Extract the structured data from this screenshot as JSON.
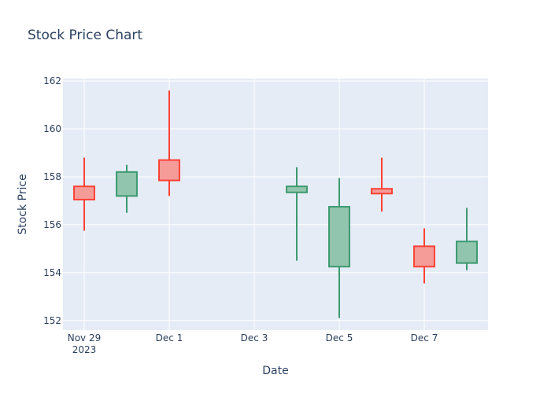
{
  "chart_data": {
    "type": "candlestick",
    "title": "Stock Price Chart",
    "xlabel": "Date",
    "ylabel": "Stock Price",
    "ylim": [
      151.6,
      162.1
    ],
    "xlim": [
      "2023-11-28T12:00",
      "2023-12-08T12:00"
    ],
    "yticks": [
      152,
      154,
      156,
      158,
      160,
      162
    ],
    "xticks": [
      {
        "date": "2023-11-29",
        "label": "Nov 29",
        "sublabel": "2023"
      },
      {
        "date": "2023-12-01",
        "label": "Dec 1",
        "sublabel": ""
      },
      {
        "date": "2023-12-03",
        "label": "Dec 3",
        "sublabel": ""
      },
      {
        "date": "2023-12-05",
        "label": "Dec 5",
        "sublabel": ""
      },
      {
        "date": "2023-12-07",
        "label": "Dec 7",
        "sublabel": ""
      }
    ],
    "grid": true,
    "colors": {
      "increasing_line": "#3d9970",
      "increasing_fill": "#92c5ad",
      "decreasing_line": "#ff4136",
      "decreasing_fill": "#f59c99",
      "plot_bg": "#e5ecf6",
      "grid": "#ffffff",
      "text": "#2a3f5f"
    },
    "candles": [
      {
        "date": "2023-11-29",
        "open": 157.6,
        "high": 158.8,
        "low": 155.75,
        "close": 157.05
      },
      {
        "date": "2023-11-30",
        "open": 157.2,
        "high": 158.5,
        "low": 156.5,
        "close": 158.2
      },
      {
        "date": "2023-12-01",
        "open": 158.7,
        "high": 161.6,
        "low": 157.2,
        "close": 157.85
      },
      {
        "date": "2023-12-04",
        "open": 157.35,
        "high": 158.4,
        "low": 154.5,
        "close": 157.6
      },
      {
        "date": "2023-12-05",
        "open": 154.25,
        "high": 157.95,
        "low": 152.1,
        "close": 156.75
      },
      {
        "date": "2023-12-06",
        "open": 157.5,
        "high": 158.8,
        "low": 156.55,
        "close": 157.3
      },
      {
        "date": "2023-12-07",
        "open": 155.1,
        "high": 155.85,
        "low": 153.55,
        "close": 154.25
      },
      {
        "date": "2023-12-08",
        "open": 154.4,
        "high": 156.7,
        "low": 154.1,
        "close": 155.3
      }
    ]
  }
}
